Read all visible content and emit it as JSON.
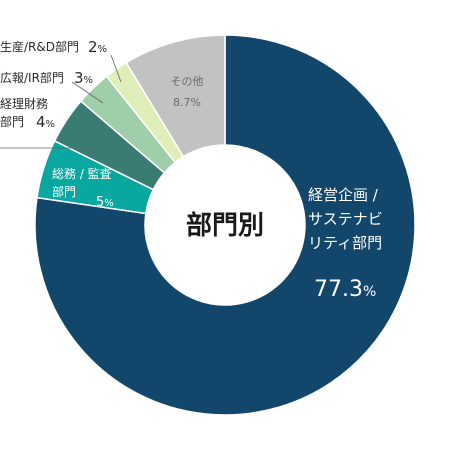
{
  "chart_data": {
    "type": "pie",
    "center_label": "部門別",
    "slices": [
      {
        "label_lines": [
          "経営企画 /",
          "サステナビ",
          "リティ部門"
        ],
        "value_text": "77.3",
        "unit": "%",
        "value": 77.3,
        "color": "#12476b"
      },
      {
        "label_lines": [
          "総務 / 監査",
          "部門"
        ],
        "value_text": "5",
        "unit": "%",
        "value": 5,
        "color": "#0aa6a0"
      },
      {
        "label_lines": [
          "経理財務",
          "部門"
        ],
        "value_text": "4",
        "unit": "%",
        "value": 4,
        "color": "#3a7b72"
      },
      {
        "label_lines": [
          "広報/IR部門"
        ],
        "value_text": "3",
        "unit": "%",
        "value": 3,
        "color": "#9fcfa8"
      },
      {
        "label_lines": [
          "生産/R&D部門"
        ],
        "value_text": "2",
        "unit": "%",
        "value": 2,
        "color": "#dfeeb8"
      },
      {
        "label_lines": [
          "その他"
        ],
        "value_text": "8.7",
        "unit": "%",
        "value": 8.7,
        "color": "#c2c2c2"
      }
    ]
  }
}
